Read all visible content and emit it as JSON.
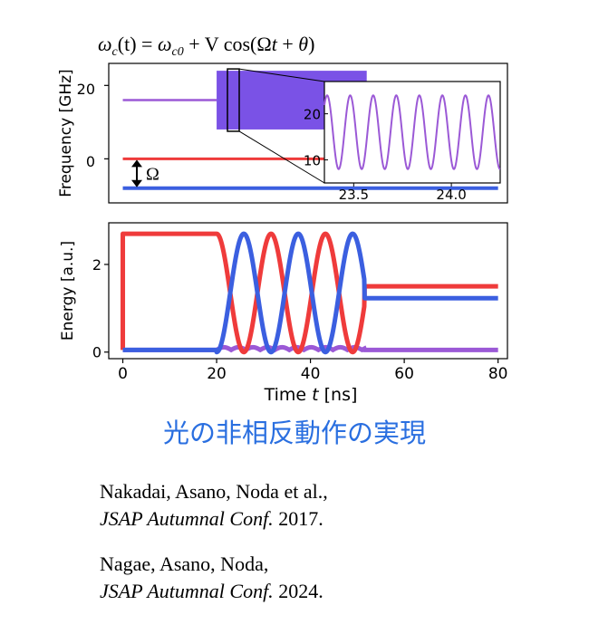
{
  "formula": {
    "omega": "ω",
    "sub_c": "c",
    "t_arg": "(t) = ",
    "omega2": "ω",
    "sub_c0": "c0",
    "plus_v": " + V",
    "cos": " cos(Ω",
    "t2": "t",
    "plus": " + ",
    "theta": "θ",
    "close": ")"
  },
  "omega_label": "Ω",
  "caption": "光の非相反動作の実現",
  "refs": [
    {
      "authors": "Nakadai,  Asano, Noda et al.,",
      "venue": "JSAP Autumnal Conf.",
      "year": " 2017."
    },
    {
      "authors": "Nagae, Asano, Noda,",
      "venue": "JSAP Autumnal Conf.",
      "year": " 2024."
    }
  ],
  "chart_data": [
    {
      "type": "line",
      "ylabel": "Frequency [GHz]",
      "ylim": [
        -12,
        26
      ],
      "xlim": [
        -3,
        82
      ],
      "yticks": [
        "0",
        "20"
      ],
      "series": [
        {
          "color": "#9b59d6",
          "desc": "upper cavity: constant ~16 GHz until 20 ns, modulated 8–24 GHz from 20 to 52 ns",
          "points": [
            [
              0,
              16
            ],
            [
              20,
              16
            ]
          ],
          "modulated_band": [
            20,
            52,
            8,
            24
          ]
        },
        {
          "color": "#ef3b3b",
          "points": [
            [
              0,
              0
            ],
            [
              80,
              0
            ]
          ]
        },
        {
          "color": "#3b5fe0",
          "points": [
            [
              0,
              -8
            ],
            [
              80,
              -8
            ]
          ]
        }
      ],
      "inset": {
        "type": "line",
        "xlim": [
          23.35,
          24.25
        ],
        "ylim": [
          5,
          27
        ],
        "xticks": [
          "23.5",
          "24.0"
        ],
        "yticks": [
          "10",
          "20"
        ],
        "series": [
          {
            "color": "#9b59d6",
            "center": 16,
            "amplitude": 8,
            "period": 0.118
          }
        ]
      }
    },
    {
      "type": "line",
      "xlabel_prefix": "Time ",
      "xlabel_var": "t",
      "xlabel_unit": " [ns]",
      "ylabel": "Energy [a.u.]",
      "xlim": [
        -3,
        82
      ],
      "ylim": [
        -0.15,
        2.95
      ],
      "xticks": [
        "0",
        "20",
        "40",
        "60",
        "80"
      ],
      "yticks": [
        "0",
        "2"
      ],
      "series": [
        {
          "color": "#ef3b3b",
          "desc": "0 until 0 ns, 2.7 from 0 to 20 ns, oscillating cos^2 with period ~11.5 ns between 20 and 52 ns, then 1.5"
        },
        {
          "color": "#3b5fe0",
          "desc": "0.05 until 20 ns, oscillating sin^2 between 20 and 52 ns, then 1.23"
        },
        {
          "color": "#9b59d6",
          "desc": "near 0, small ripples (~0.1) between 20 and 52 ns"
        }
      ]
    }
  ]
}
